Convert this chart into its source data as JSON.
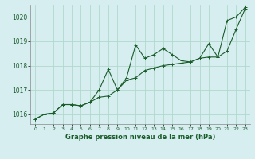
{
  "title": "Graphe pression niveau de la mer (hPa)",
  "background_color": "#d6eef0",
  "grid_color": "#b0d8cc",
  "line_color": "#1a5c2a",
  "xlim": [
    -0.5,
    23.5
  ],
  "ylim": [
    1015.6,
    1020.5
  ],
  "yticks": [
    1016,
    1017,
    1018,
    1019,
    1020
  ],
  "xtick_labels": [
    "0",
    "1",
    "2",
    "3",
    "4",
    "5",
    "6",
    "7",
    "8",
    "9",
    "10",
    "11",
    "12",
    "13",
    "14",
    "15",
    "16",
    "17",
    "18",
    "19",
    "20",
    "21",
    "22",
    "23"
  ],
  "series1": [
    1015.8,
    1016.0,
    1016.05,
    1016.4,
    1016.4,
    1016.35,
    1016.5,
    1016.7,
    1016.75,
    1017.0,
    1017.4,
    1017.5,
    1017.8,
    1017.9,
    1018.0,
    1018.05,
    1018.1,
    1018.15,
    1018.3,
    1018.35,
    1018.35,
    1018.6,
    1019.5,
    1020.35
  ],
  "series2": [
    1015.8,
    1016.0,
    1016.05,
    1016.4,
    1016.4,
    1016.35,
    1016.5,
    1017.0,
    1017.85,
    1017.0,
    1017.5,
    1018.85,
    1018.3,
    1018.45,
    1018.7,
    1018.45,
    1018.2,
    1018.15,
    1018.3,
    1018.9,
    1018.35,
    1019.85,
    1020.0,
    1020.4
  ]
}
